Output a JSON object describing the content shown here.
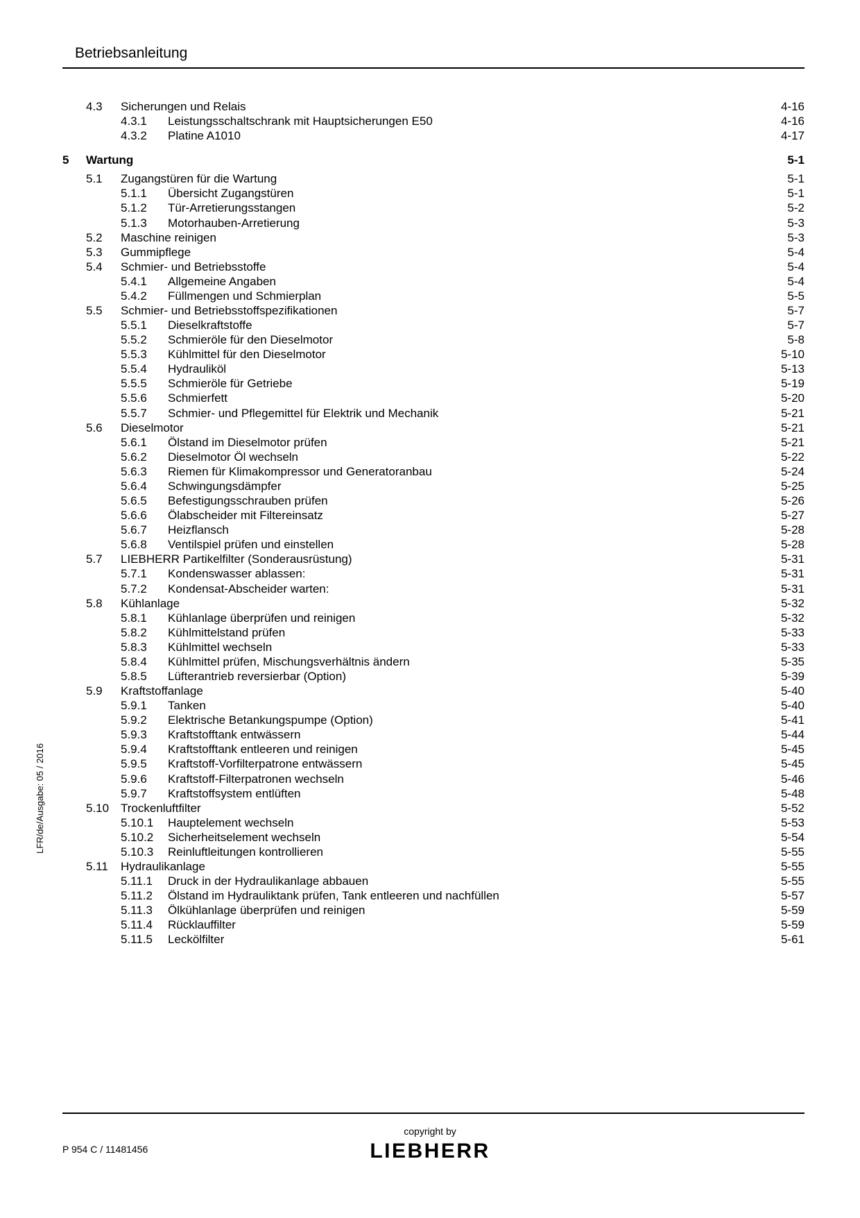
{
  "header": {
    "title": "Betriebsanleitung"
  },
  "side_label": "LFR/de/Ausgabe: 05 / 2016",
  "footer": {
    "copyright": "copyright by",
    "brand": "LIEBHERR",
    "docid": "P 954 C / 11481456"
  },
  "toc": [
    {
      "type": "section",
      "section": "4.3",
      "title": "Sicherungen und Relais",
      "page": "4-16"
    },
    {
      "type": "sub",
      "sub": "4.3.1",
      "title": "Leistungsschaltschrank mit Hauptsicherungen E50",
      "page": "4-16"
    },
    {
      "type": "sub",
      "sub": "4.3.2",
      "title": "Platine A1010",
      "page": "4-17"
    },
    {
      "type": "gap-md"
    },
    {
      "type": "chapter",
      "chapter": "5",
      "title": "Wartung ",
      "page": "5-1",
      "bold": true
    },
    {
      "type": "gap-sm"
    },
    {
      "type": "section",
      "section": "5.1",
      "title": "Zugangstüren für die Wartung",
      "page": "5-1"
    },
    {
      "type": "sub",
      "sub": "5.1.1",
      "title": "Übersicht Zugangstüren",
      "page": "5-1"
    },
    {
      "type": "sub",
      "sub": "5.1.2",
      "title": "Tür-Arretierungsstangen",
      "page": "5-2"
    },
    {
      "type": "sub",
      "sub": "5.1.3",
      "title": "Motorhauben-Arretierung",
      "page": "5-3"
    },
    {
      "type": "section",
      "section": "5.2",
      "title": "Maschine reinigen",
      "page": "5-3"
    },
    {
      "type": "section",
      "section": "5.3",
      "title": "Gummipflege",
      "page": "5-4"
    },
    {
      "type": "section",
      "section": "5.4",
      "title": "Schmier- und Betriebsstoffe",
      "page": "5-4"
    },
    {
      "type": "sub",
      "sub": "5.4.1",
      "title": "Allgemeine Angaben",
      "page": "5-4"
    },
    {
      "type": "sub",
      "sub": "5.4.2",
      "title": "Füllmengen und Schmierplan",
      "page": "5-5"
    },
    {
      "type": "section",
      "section": "5.5",
      "title": "Schmier- und Betriebsstoffspezifikationen",
      "page": "5-7"
    },
    {
      "type": "sub",
      "sub": "5.5.1",
      "title": "Dieselkraftstoffe",
      "page": "5-7"
    },
    {
      "type": "sub",
      "sub": "5.5.2",
      "title": "Schmieröle für den Dieselmotor",
      "page": "5-8"
    },
    {
      "type": "sub",
      "sub": "5.5.3",
      "title": "Kühlmittel für den Dieselmotor",
      "page": "5-10"
    },
    {
      "type": "sub",
      "sub": "5.5.4",
      "title": "Hydrauliköl",
      "page": "5-13"
    },
    {
      "type": "sub",
      "sub": "5.5.5",
      "title": "Schmieröle für Getriebe",
      "page": "5-19"
    },
    {
      "type": "sub",
      "sub": "5.5.6",
      "title": "Schmierfett",
      "page": "5-20"
    },
    {
      "type": "sub",
      "sub": "5.5.7",
      "title": "Schmier- und Pflegemittel für Elektrik und Mechanik",
      "page": "5-21"
    },
    {
      "type": "section",
      "section": "5.6",
      "title": "Dieselmotor",
      "page": "5-21"
    },
    {
      "type": "sub",
      "sub": "5.6.1",
      "title": "Ölstand im Dieselmotor prüfen",
      "page": "5-21"
    },
    {
      "type": "sub",
      "sub": "5.6.2",
      "title": "Dieselmotor Öl wechseln",
      "page": "5-22"
    },
    {
      "type": "sub",
      "sub": "5.6.3",
      "title": "Riemen für Klimakompressor und Generatoranbau",
      "page": "5-24"
    },
    {
      "type": "sub",
      "sub": "5.6.4",
      "title": "Schwingungsdämpfer",
      "page": "5-25"
    },
    {
      "type": "sub",
      "sub": "5.6.5",
      "title": "Befestigungsschrauben prüfen",
      "page": "5-26"
    },
    {
      "type": "sub",
      "sub": "5.6.6",
      "title": "Ölabscheider mit Filtereinsatz",
      "page": "5-27"
    },
    {
      "type": "sub",
      "sub": "5.6.7",
      "title": "Heizflansch",
      "page": "5-28"
    },
    {
      "type": "sub",
      "sub": "5.6.8",
      "title": "Ventilspiel prüfen und einstellen",
      "page": "5-28"
    },
    {
      "type": "section",
      "section": "5.7",
      "title": "LIEBHERR Partikelfilter (Sonderausrüstung)",
      "page": "5-31"
    },
    {
      "type": "sub",
      "sub": "5.7.1",
      "title": "Kondenswasser ablassen:",
      "page": "5-31"
    },
    {
      "type": "sub",
      "sub": "5.7.2",
      "title": "Kondensat-Abscheider warten:",
      "page": "5-31"
    },
    {
      "type": "section",
      "section": "5.8",
      "title": "Kühlanlage",
      "page": "5-32"
    },
    {
      "type": "sub",
      "sub": "5.8.1",
      "title": "Kühlanlage überprüfen und reinigen",
      "page": "5-32"
    },
    {
      "type": "sub",
      "sub": "5.8.2",
      "title": "Kühlmittelstand prüfen",
      "page": "5-33"
    },
    {
      "type": "sub",
      "sub": "5.8.3",
      "title": "Kühlmittel wechseln",
      "page": "5-33"
    },
    {
      "type": "sub",
      "sub": "5.8.4",
      "title": "Kühlmittel prüfen, Mischungsverhältnis ändern",
      "page": "5-35"
    },
    {
      "type": "sub",
      "sub": "5.8.5",
      "title": "Lüfterantrieb reversierbar (Option)",
      "page": "5-39"
    },
    {
      "type": "section",
      "section": "5.9",
      "title": "Kraftstoffanlage",
      "page": "5-40"
    },
    {
      "type": "sub",
      "sub": "5.9.1",
      "title": "Tanken",
      "page": "5-40"
    },
    {
      "type": "sub",
      "sub": "5.9.2",
      "title": "Elektrische Betankungspumpe (Option)",
      "page": "5-41"
    },
    {
      "type": "sub",
      "sub": "5.9.3",
      "title": "Kraftstofftank entwässern",
      "page": "5-44"
    },
    {
      "type": "sub",
      "sub": "5.9.4",
      "title": "Kraftstofftank entleeren und reinigen",
      "page": "5-45"
    },
    {
      "type": "sub",
      "sub": "5.9.5",
      "title": "Kraftstoff-Vorfilterpatrone entwässern",
      "page": "5-45"
    },
    {
      "type": "sub",
      "sub": "5.9.6",
      "title": "Kraftstoff-Filterpatronen wechseln",
      "page": "5-46"
    },
    {
      "type": "sub",
      "sub": "5.9.7",
      "title": "Kraftstoffsystem entlüften",
      "page": "5-48"
    },
    {
      "type": "section",
      "section": "5.10",
      "title": "Trockenluftfilter",
      "page": "5-52"
    },
    {
      "type": "sub",
      "sub": "5.10.1",
      "title": "Hauptelement wechseln",
      "page": "5-53"
    },
    {
      "type": "sub",
      "sub": "5.10.2",
      "title": "Sicherheitselement wechseln",
      "page": "5-54"
    },
    {
      "type": "sub",
      "sub": "5.10.3",
      "title": "Reinluftleitungen kontrollieren",
      "page": "5-55"
    },
    {
      "type": "section",
      "section": "5.11",
      "title": "Hydraulikanlage",
      "page": "5-55"
    },
    {
      "type": "sub",
      "sub": "5.11.1",
      "title": "Druck in der Hydraulikanlage abbauen",
      "page": "5-55"
    },
    {
      "type": "sub",
      "sub": "5.11.2",
      "title": "Ölstand im Hydrauliktank prüfen, Tank entleeren und nachfüllen",
      "page": "5-57"
    },
    {
      "type": "sub",
      "sub": "5.11.3",
      "title": "Ölkühlanlage überprüfen und reinigen",
      "page": "5-59"
    },
    {
      "type": "sub",
      "sub": "5.11.4",
      "title": "Rücklauffilter",
      "page": "5-59"
    },
    {
      "type": "sub",
      "sub": "5.11.5",
      "title": "Leckölfilter",
      "page": "5-61"
    }
  ]
}
